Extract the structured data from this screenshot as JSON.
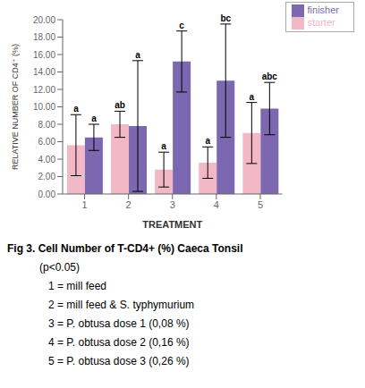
{
  "chart_data": {
    "type": "bar",
    "categories": [
      "1",
      "2",
      "3",
      "4",
      "5"
    ],
    "series": [
      {
        "name": "starter",
        "color": "#F2B8C6",
        "values": [
          5.6,
          8.0,
          2.8,
          3.6,
          7.0
        ],
        "errors": [
          3.5,
          1.5,
          2.0,
          1.8,
          3.5
        ],
        "letters": [
          "a",
          "ab",
          "a",
          "a",
          "a"
        ]
      },
      {
        "name": "finisher",
        "color": "#7B68B0",
        "values": [
          6.5,
          7.8,
          15.2,
          13.0,
          9.8
        ],
        "errors": [
          1.5,
          7.5,
          3.5,
          6.5,
          3.0
        ],
        "letters": [
          "a",
          "a",
          "c",
          "bc",
          "abc"
        ]
      }
    ],
    "xlabel": "TREATMENT",
    "ylabel": "RELATIVE NUMBER OF CD4⁺ (%)",
    "ylim": [
      0,
      20.0
    ],
    "yticks": [
      {
        "value": 0,
        "label": "0.00"
      },
      {
        "value": 2,
        "label": "2.00"
      },
      {
        "value": 4,
        "label": "4.00"
      },
      {
        "value": 6,
        "label": "6.00"
      },
      {
        "value": 8,
        "label": "8.00"
      },
      {
        "value": 10,
        "label": "10.00"
      },
      {
        "value": 12,
        "label": "12.00"
      },
      {
        "value": 14,
        "label": "14.00"
      },
      {
        "value": 16,
        "label": "16.00"
      },
      {
        "value": 18,
        "label": "18.00"
      },
      {
        "value": 20,
        "label": "20.00"
      }
    ],
    "legend": "upper right",
    "grid": false,
    "annotations": [
      "Fig 3. Cell Number of T-CD4+ (%) Caeca Tonsil",
      "(p<0.05)",
      "1 = mill feed",
      "2 = mill feed & S. typhymurium",
      "3 = P. obtusa dose 1 (0,08 %)",
      "4 = P. obtusa dose 2 (0,16 %)",
      "5 = P. obtusa dose 3 (0,26 %)"
    ]
  }
}
